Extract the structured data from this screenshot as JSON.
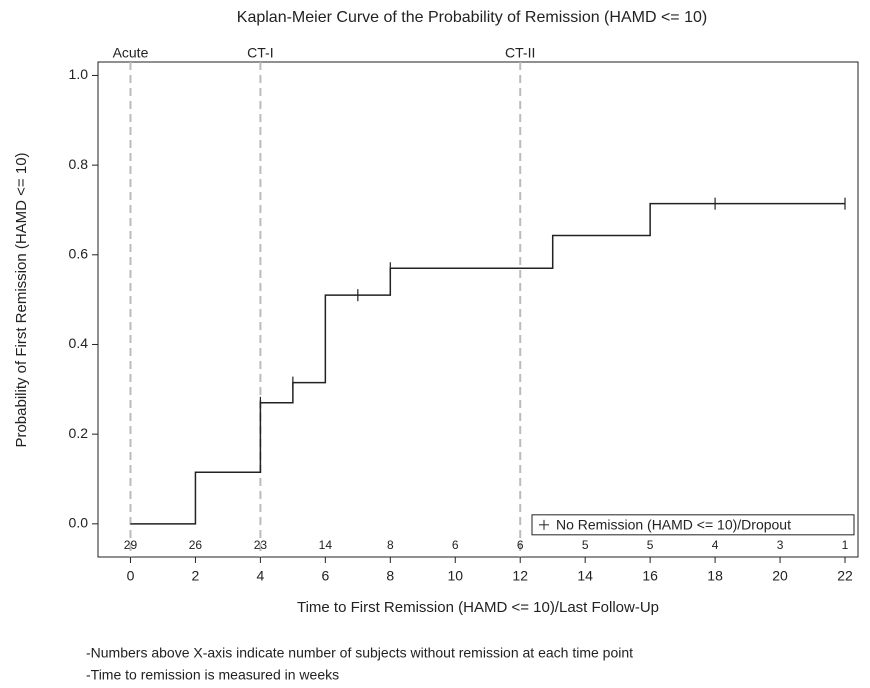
{
  "chart_data": {
    "type": "step",
    "title": "Kaplan-Meier Curve of the Probability of Remission (HAMD <= 10)",
    "x_label": "Time to First Remission (HAMD <= 10)/Last Follow-Up",
    "y_label": "Probability of First Remission (HAMD <= 10)",
    "xlim": [
      -1,
      22.4
    ],
    "ylim": [
      -0.074,
      1.03
    ],
    "xticks": [
      0,
      2,
      4,
      6,
      8,
      10,
      12,
      14,
      16,
      18,
      20,
      22
    ],
    "yticks": [
      {
        "value": 0,
        "label": "0.0"
      },
      {
        "value": 0.2,
        "label": "0.2"
      },
      {
        "value": 0.4,
        "label": "0.4"
      },
      {
        "value": 0.6,
        "label": "0.6"
      },
      {
        "value": 0.8,
        "label": "0.8"
      },
      {
        "value": 1,
        "label": "1.0"
      }
    ],
    "series": [
      {
        "name": "Remission",
        "color": "#222222",
        "x": [
          0,
          2,
          4,
          5,
          6,
          8,
          13,
          16,
          22
        ],
        "values": [
          0,
          0.115,
          0.27,
          0.315,
          0.51,
          0.57,
          0.643,
          0.714,
          0.714
        ]
      }
    ],
    "censored": {
      "name": "No Remission (HAMD <= 10)/Dropout",
      "color": "#222222",
      "x": [
        4,
        5,
        7,
        8,
        18,
        22
      ],
      "values": [
        0.27,
        0.315,
        0.51,
        0.57,
        0.714,
        0.714
      ]
    },
    "at_risk": {
      "x": [
        0,
        2,
        4,
        6,
        8,
        10,
        12,
        14,
        16,
        18,
        20,
        22
      ],
      "values": [
        29,
        26,
        23,
        14,
        8,
        6,
        6,
        5,
        5,
        4,
        3,
        1
      ]
    },
    "reference_lines": {
      "x": [
        0,
        4,
        12
      ],
      "labels": [
        "Acute",
        "CT-I",
        "CT-II"
      ],
      "color": "#bbbbbb"
    },
    "legend": "bottom-right",
    "notes": [
      "-Numbers above X-axis indicate number of subjects without remission at each time point",
      "-Time to remission is measured in weeks"
    ]
  }
}
